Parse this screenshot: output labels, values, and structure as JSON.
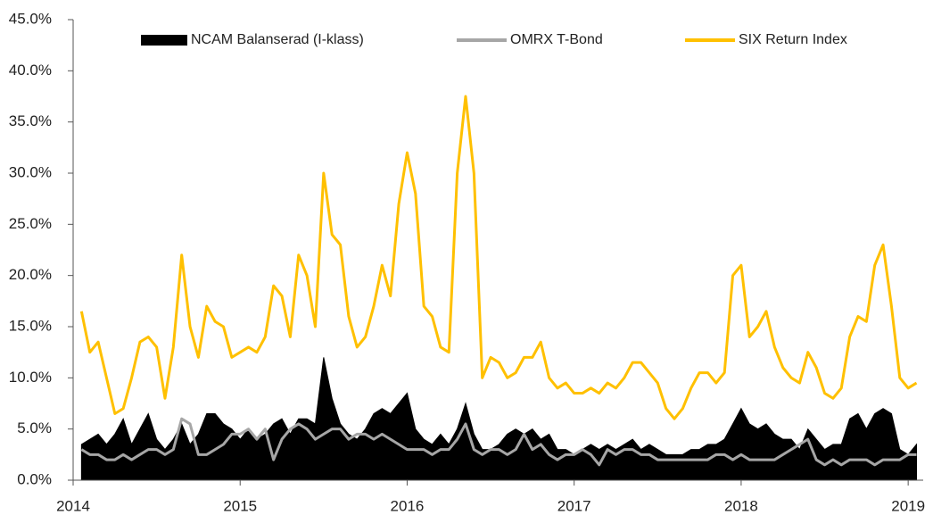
{
  "chart_data": {
    "type": "line",
    "legend": "top",
    "xlim": [
      2014,
      2019.09
    ],
    "xticks": [
      2014,
      2015,
      2016,
      2017,
      2018,
      2019
    ],
    "ylim": [
      0,
      45
    ],
    "yticks": [
      {
        "value": 0,
        "label": "0.0%"
      },
      {
        "value": 5,
        "label": "5.0%"
      },
      {
        "value": 10,
        "label": "10.0%"
      },
      {
        "value": 15,
        "label": "15.0%"
      },
      {
        "value": 20,
        "label": "20.0%"
      },
      {
        "value": 25,
        "label": "25.0%"
      },
      {
        "value": 30,
        "label": "30.0%"
      },
      {
        "value": 35,
        "label": "35.0%"
      },
      {
        "value": 40,
        "label": "40.0%"
      },
      {
        "value": 45,
        "label": "45.0%"
      }
    ],
    "x": [
      2014.05,
      2014.1,
      2014.15,
      2014.2,
      2014.25,
      2014.3,
      2014.35,
      2014.4,
      2014.45,
      2014.5,
      2014.55,
      2014.6,
      2014.65,
      2014.7,
      2014.75,
      2014.8,
      2014.85,
      2014.9,
      2014.95,
      2015.0,
      2015.05,
      2015.1,
      2015.15,
      2015.2,
      2015.25,
      2015.3,
      2015.35,
      2015.4,
      2015.45,
      2015.5,
      2015.55,
      2015.6,
      2015.65,
      2015.7,
      2015.75,
      2015.8,
      2015.85,
      2015.9,
      2015.95,
      2016.0,
      2016.05,
      2016.1,
      2016.15,
      2016.2,
      2016.25,
      2016.3,
      2016.35,
      2016.4,
      2016.45,
      2016.5,
      2016.55,
      2016.6,
      2016.65,
      2016.7,
      2016.75,
      2016.8,
      2016.85,
      2016.9,
      2016.95,
      2017.0,
      2017.05,
      2017.1,
      2017.15,
      2017.2,
      2017.25,
      2017.3,
      2017.35,
      2017.4,
      2017.45,
      2017.5,
      2017.55,
      2017.6,
      2017.65,
      2017.7,
      2017.75,
      2017.8,
      2017.85,
      2017.9,
      2017.95,
      2018.0,
      2018.05,
      2018.1,
      2018.15,
      2018.2,
      2018.25,
      2018.3,
      2018.35,
      2018.4,
      2018.45,
      2018.5,
      2018.55,
      2018.6,
      2018.65,
      2018.7,
      2018.75,
      2018.8,
      2018.85,
      2018.9,
      2018.95,
      2019.0,
      2019.05
    ],
    "series": [
      {
        "name": "NCAM Balanserad (I-klass)",
        "color": "#000000",
        "style": "area",
        "values": [
          3.5,
          4,
          4.5,
          3.5,
          4.5,
          6,
          3.5,
          5,
          6.5,
          4,
          3,
          4,
          5.5,
          3.5,
          4.5,
          6.5,
          6.5,
          5.5,
          5,
          4,
          5,
          4,
          4.5,
          5.5,
          6,
          4.5,
          6,
          6,
          5.5,
          12,
          8,
          5.5,
          4.5,
          4,
          5,
          6.5,
          7,
          6.5,
          7.5,
          8.5,
          5,
          4,
          3.5,
          4.5,
          3.5,
          5,
          7.5,
          4.5,
          3,
          3,
          3.5,
          4.5,
          5,
          4.5,
          5,
          4,
          4.5,
          3,
          3,
          2.5,
          3,
          3.5,
          3,
          3.5,
          3,
          3.5,
          4,
          3,
          3.5,
          3,
          2.5,
          2.5,
          2.5,
          3,
          3,
          3.5,
          3.5,
          4,
          5.5,
          7,
          5.5,
          5,
          5.5,
          4.5,
          4,
          4,
          3,
          5,
          4,
          3,
          3.5,
          3.5,
          6,
          6.5,
          5,
          6.5,
          7,
          6.5,
          3,
          2.5,
          3.5
        ]
      },
      {
        "name": "OMRX T-Bond",
        "color": "#a6a6a6",
        "style": "line",
        "values": [
          3,
          2.5,
          2.5,
          2,
          2,
          2.5,
          2,
          2.5,
          3,
          3,
          2.5,
          3,
          6,
          5.5,
          2.5,
          2.5,
          3,
          3.5,
          4.5,
          4.5,
          5,
          4,
          5,
          2,
          4,
          5,
          5.5,
          5,
          4,
          4.5,
          5,
          5,
          4,
          4.5,
          4.5,
          4,
          4.5,
          4,
          3.5,
          3,
          3,
          3,
          2.5,
          3,
          3,
          4,
          5.5,
          3,
          2.5,
          3,
          3,
          2.5,
          3,
          4.5,
          3,
          3.5,
          2.5,
          2,
          2.5,
          2.5,
          3,
          2.5,
          1.5,
          3,
          2.5,
          3,
          3,
          2.5,
          2.5,
          2,
          2,
          2,
          2,
          2,
          2,
          2,
          2.5,
          2.5,
          2,
          2.5,
          2,
          2,
          2,
          2,
          2.5,
          3,
          3.5,
          4,
          2,
          1.5,
          2,
          1.5,
          2,
          2,
          2,
          1.5,
          2,
          2,
          2,
          2.5,
          2.5
        ]
      },
      {
        "name": "SIX Return Index",
        "color": "#ffc000",
        "style": "line",
        "values": [
          16.5,
          12.5,
          13.5,
          10,
          6.5,
          7,
          10,
          13.5,
          14,
          13,
          8,
          13,
          22,
          15,
          12,
          17,
          15.5,
          15,
          12,
          12.5,
          13,
          12.5,
          14,
          19,
          18,
          14,
          22,
          20,
          15,
          30,
          24,
          23,
          16,
          13,
          14,
          17,
          21,
          18,
          27,
          32,
          28,
          17,
          16,
          13,
          12.5,
          30,
          37.5,
          30,
          10,
          12,
          11.5,
          10,
          10.5,
          12,
          12,
          13.5,
          10,
          9,
          9.5,
          8.5,
          8.5,
          9,
          8.5,
          9.5,
          9,
          10,
          11.5,
          11.5,
          10.5,
          9.5,
          7,
          6,
          7,
          9,
          10.5,
          10.5,
          9.5,
          10.5,
          20,
          21,
          14,
          15,
          16.5,
          13,
          11,
          10,
          9.5,
          12.5,
          11,
          8.5,
          8,
          9,
          14,
          16,
          15.5,
          21,
          23,
          17,
          10,
          9,
          9.5
        ]
      }
    ]
  }
}
